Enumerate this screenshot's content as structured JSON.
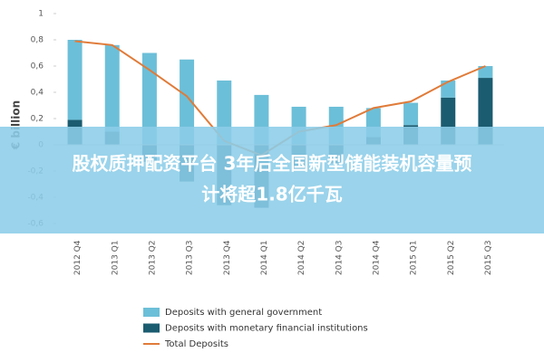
{
  "chart_data": {
    "type": "stacked-bar-line",
    "y_label": "€ billion",
    "categories": [
      "2012 Q4",
      "2013 Q1",
      "2013 Q2",
      "2013 Q3",
      "2013 Q4",
      "2014 Q1",
      "2014 Q2",
      "2014 Q3",
      "2014 Q4",
      "2015 Q1",
      "2015 Q2",
      "2015 Q3"
    ],
    "series": [
      {
        "name": "Deposits with general government",
        "color": "#6cbfd8",
        "kind": "bar",
        "values": [
          0.61,
          0.66,
          0.7,
          0.65,
          0.49,
          0.38,
          0.29,
          0.29,
          0.22,
          0.17,
          0.13,
          0.09
        ]
      },
      {
        "name": "Deposits with monetary financial institutions",
        "color": "#1b5c70",
        "kind": "bar",
        "values": [
          0.19,
          0.1,
          -0.13,
          -0.28,
          -0.46,
          -0.48,
          -0.19,
          -0.14,
          0.06,
          0.15,
          0.36,
          0.51
        ]
      },
      {
        "name": "Total Deposits",
        "color": "#e07b39",
        "kind": "line",
        "values": [
          0.79,
          0.76,
          0.57,
          0.37,
          0.03,
          -0.08,
          0.1,
          0.15,
          0.28,
          0.33,
          0.48,
          0.6
        ]
      }
    ],
    "ylim": [
      -0.7,
      1
    ],
    "yticks": [
      {
        "value": -0.6,
        "label": "-0,6"
      },
      {
        "value": -0.4,
        "label": "-0,4"
      },
      {
        "value": -0.2,
        "label": "-0,2"
      },
      0,
      {
        "value": 0.2,
        "label": "0,2"
      },
      {
        "value": 0.4,
        "label": "0,4"
      },
      {
        "value": 0.6,
        "label": "0,6"
      },
      {
        "value": 0.8,
        "label": "0,8"
      },
      1
    ]
  },
  "banner": {
    "lines": [
      "股权质押配资平台 3年后全国新型储能装机容量预",
      "计将超1.8亿千瓦"
    ]
  }
}
